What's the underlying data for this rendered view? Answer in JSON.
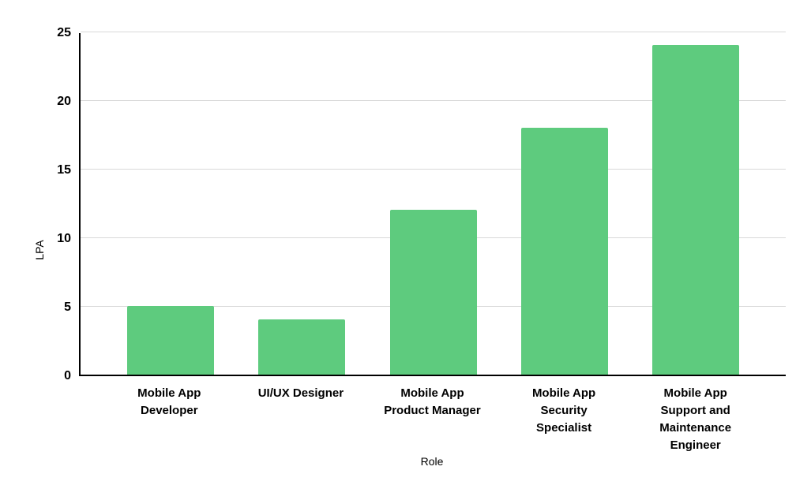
{
  "chart_data": {
    "type": "bar",
    "title": "",
    "xlabel": "Role",
    "ylabel": "LPA",
    "categories": [
      "Mobile App\nDeveloper",
      "UI/UX Designer",
      "Mobile App\nProduct Manager",
      "Mobile App\nSecurity\nSpecialist",
      "Mobile App\nSupport and\nMaintenance\nEngineer"
    ],
    "values": [
      5,
      4,
      12,
      18,
      24
    ],
    "ylim": [
      0,
      25
    ],
    "yticks": [
      0,
      5,
      10,
      15,
      20,
      25
    ],
    "grid": true,
    "legend": "none",
    "bar_color": "#5ecb7e",
    "axis_color": "#000000",
    "gridline_color": "#d8d8d8",
    "label_color": "#000000",
    "background_color": "#ffffff"
  }
}
